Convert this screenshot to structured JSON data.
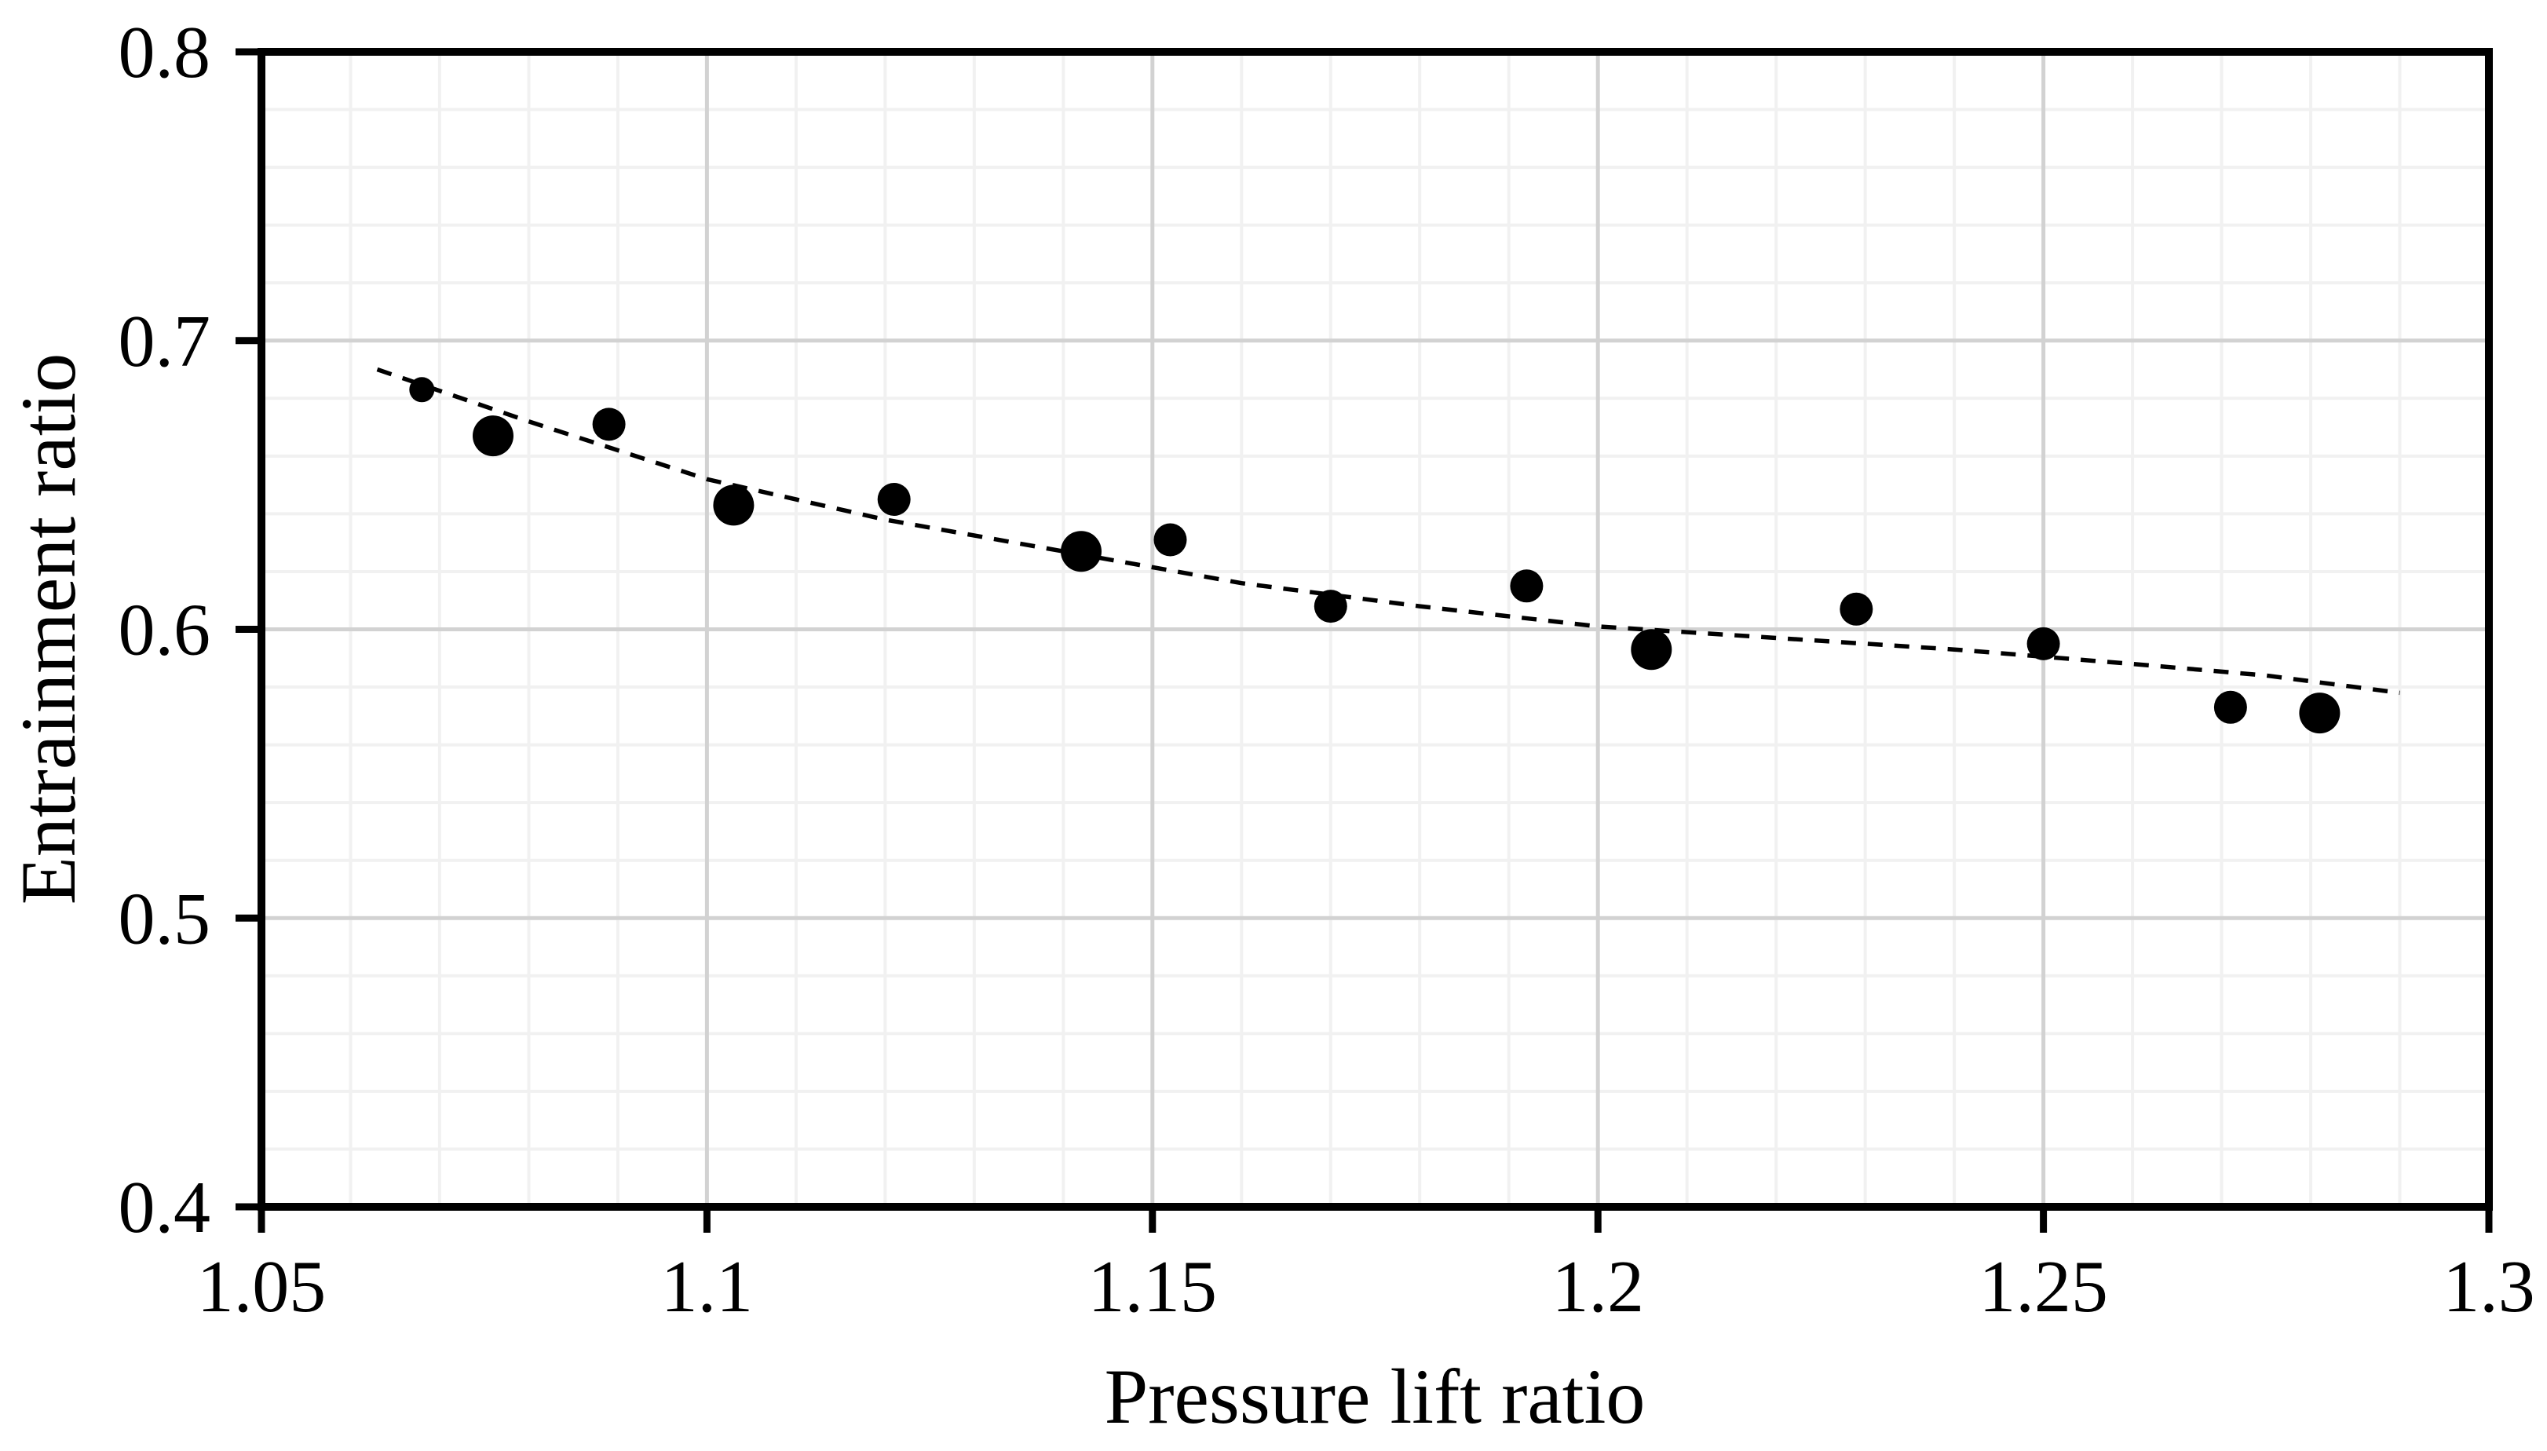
{
  "figure": {
    "background": "#ffffff"
  },
  "chart_data": {
    "type": "scatter",
    "title": "",
    "xlabel": "Pressure lift ratio",
    "ylabel": "Entrainment ratio",
    "xlim": [
      1.05,
      1.3
    ],
    "ylim": [
      0.4,
      0.8
    ],
    "x_major_ticks": [
      1.05,
      1.1,
      1.15,
      1.2,
      1.25,
      1.3
    ],
    "x_tick_labels": [
      "1.05",
      "1.1",
      "1.15",
      "1.2",
      "1.25",
      "1.3"
    ],
    "x_minor_step": 0.01,
    "y_major_ticks": [
      0.4,
      0.5,
      0.6,
      0.7,
      0.8
    ],
    "y_tick_labels": [
      "0.4",
      "0.5",
      "0.6",
      "0.7",
      "0.8"
    ],
    "y_minor_step": 0.02,
    "grid": {
      "show": true,
      "major_color": "#d2d2d2",
      "minor_color": "#f1f1f1"
    },
    "axis_color": "#000000",
    "marker_color": "#000000",
    "legend": {
      "show": false
    },
    "series": [
      {
        "name": "measured",
        "marker": "circle",
        "points": [
          {
            "x": 1.068,
            "y": 0.683,
            "size": "small"
          },
          {
            "x": 1.076,
            "y": 0.667,
            "size": "large"
          },
          {
            "x": 1.089,
            "y": 0.671,
            "size": "medium"
          },
          {
            "x": 1.103,
            "y": 0.643,
            "size": "large"
          },
          {
            "x": 1.121,
            "y": 0.645,
            "size": "medium"
          },
          {
            "x": 1.142,
            "y": 0.627,
            "size": "large"
          },
          {
            "x": 1.152,
            "y": 0.631,
            "size": "medium"
          },
          {
            "x": 1.17,
            "y": 0.608,
            "size": "medium"
          },
          {
            "x": 1.192,
            "y": 0.615,
            "size": "medium"
          },
          {
            "x": 1.206,
            "y": 0.593,
            "size": "large"
          },
          {
            "x": 1.229,
            "y": 0.607,
            "size": "medium"
          },
          {
            "x": 1.25,
            "y": 0.595,
            "size": "medium"
          },
          {
            "x": 1.271,
            "y": 0.573,
            "size": "medium"
          },
          {
            "x": 1.281,
            "y": 0.571,
            "size": "large"
          }
        ]
      }
    ],
    "trendline": {
      "style": "dashed",
      "color": "#000000",
      "points": [
        [
          1.063,
          0.69
        ],
        [
          1.08,
          0.672
        ],
        [
          1.1,
          0.652
        ],
        [
          1.12,
          0.638
        ],
        [
          1.14,
          0.627
        ],
        [
          1.16,
          0.616
        ],
        [
          1.18,
          0.608
        ],
        [
          1.2,
          0.601
        ],
        [
          1.22,
          0.597
        ],
        [
          1.24,
          0.593
        ],
        [
          1.26,
          0.588
        ],
        [
          1.275,
          0.584
        ],
        [
          1.29,
          0.578
        ]
      ]
    }
  }
}
